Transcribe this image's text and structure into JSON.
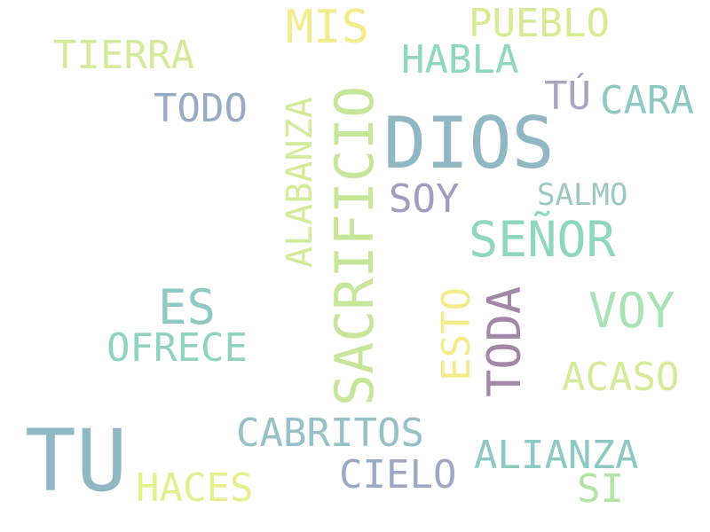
{
  "words": {
    "dios": {
      "text": "DIOS",
      "color": "#8fb7c4"
    },
    "tu": {
      "text": "TU",
      "color": "#8fb7c4"
    },
    "sacrificio": {
      "text": "SACRIFICIO",
      "color": "#c6e69a"
    },
    "senor": {
      "text": "SEÑOR",
      "color": "#8fd7bd"
    },
    "mis": {
      "text": "MIS",
      "color": "#f3ec8a"
    },
    "es": {
      "text": "ES",
      "color": "#8fc9c4"
    },
    "voy": {
      "text": "VOY",
      "color": "#a8e2b6"
    },
    "toda": {
      "text": "TODA",
      "color": "#a486a8"
    },
    "alabanza": {
      "text": "ALABANZA",
      "color": "#d4eb99"
    },
    "pueblo": {
      "text": "PUEBLO",
      "color": "#d6ec93"
    },
    "tierra": {
      "text": "TIERRA",
      "color": "#d4eb99"
    },
    "habla": {
      "text": "HABLA",
      "color": "#8fd7bd"
    },
    "todo": {
      "text": "TODO",
      "color": "#99aac4"
    },
    "tu2": {
      "text": "TÚ",
      "color": "#a8a4c6"
    },
    "cara": {
      "text": "CARA",
      "color": "#8fc9c4"
    },
    "soy": {
      "text": "SOY",
      "color": "#a09cc2"
    },
    "salmo": {
      "text": "SALMO",
      "color": "#9cc9c4"
    },
    "ofrece": {
      "text": "OFRECE",
      "color": "#8fd3c0"
    },
    "esto": {
      "text": "ESTO",
      "color": "#f3ec8a"
    },
    "acaso": {
      "text": "ACASO",
      "color": "#d4eb99"
    },
    "cabritos": {
      "text": "CABRITOS",
      "color": "#96c1c8"
    },
    "alianza": {
      "text": "ALIANZA",
      "color": "#8fc9c4"
    },
    "cielo": {
      "text": "CIELO",
      "color": "#9aaac6"
    },
    "haces": {
      "text": "HACES",
      "color": "#e6ef8f"
    },
    "si": {
      "text": "SI",
      "color": "#b2e4a8"
    }
  }
}
